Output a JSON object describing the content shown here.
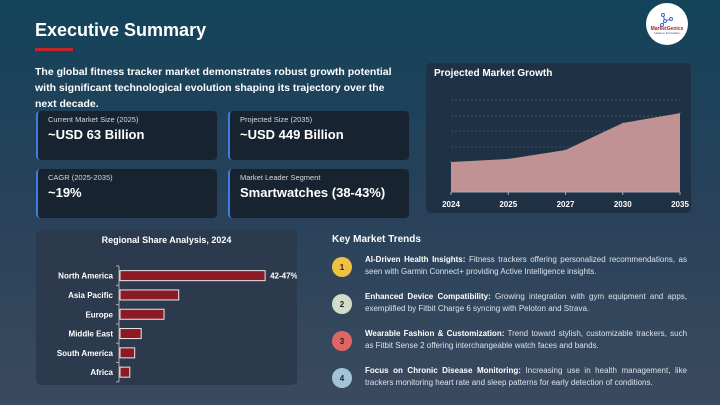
{
  "header": {
    "title": "Executive Summary",
    "logo_text": "MarketGenics",
    "logo_tagline": "Ideas to Innovation",
    "accent": "#c4242c"
  },
  "intro": "The global fitness tracker market demonstrates robust growth potential with significant technological evolution shaping its trajectory over the next decade.",
  "cards": [
    {
      "label": "Current Market Size (2025)",
      "value": "~USD 63 Billion"
    },
    {
      "label": "Projected Size (2035)",
      "value": "~USD 449 Billion"
    },
    {
      "label": "CAGR (2025-2035)",
      "value": "~19%"
    },
    {
      "label": "Market Leader Segment",
      "value": "Smartwatches (38-43%)"
    }
  ],
  "chart_data": [
    {
      "type": "area",
      "title": "Projected Market Growth",
      "categories": [
        "2024",
        "2025",
        "2027",
        "2030",
        "2035"
      ],
      "values": [
        38,
        63,
        139,
        366,
        449
      ],
      "unit": "USD Billion (approx.)",
      "ylim": [
        -215,
        560
      ],
      "grid": true,
      "color": "#c09294"
    },
    {
      "type": "bar",
      "orientation": "horizontal",
      "title": "Regional Share Analysis, 2024",
      "categories": [
        "North America",
        "Asia Pacific",
        "Europe",
        "Middle East",
        "South America",
        "Africa"
      ],
      "values": [
        44.5,
        18,
        13.5,
        6.5,
        4.5,
        3
      ],
      "data_labels": [
        "42-47%",
        "",
        "",
        "",
        "",
        ""
      ],
      "xlim": [
        0,
        46
      ],
      "color": "#8b1a24"
    }
  ],
  "trends": {
    "heading": "Key Market Trends",
    "items": [
      {
        "n": "1",
        "title": "AI-Driven Health Insights:",
        "text": "Fitness trackers offering personalized recommendations, as seen with Garmin Connect+ providing Active Intelligence insights.",
        "color": "#f0c043"
      },
      {
        "n": "2",
        "title": "Enhanced Device Compatibility:",
        "text": "Growing integration with gym equipment and apps, exemplified by Fitbit Charge 6 syncing with Peloton and Strava.",
        "color": "#d3dccb"
      },
      {
        "n": "3",
        "title": "Wearable Fashion & Customization:",
        "text": "Trend toward stylish, customizable trackers, such as Fitbit Sense 2 offering interchangeable watch faces and bands.",
        "color": "#e06666"
      },
      {
        "n": "4",
        "title": "Focus on Chronic Disease Monitoring:",
        "text": "Increasing use in health management, like trackers monitoring heart rate and sleep patterns for early detection of conditions.",
        "color": "#a3c4d8"
      }
    ]
  }
}
